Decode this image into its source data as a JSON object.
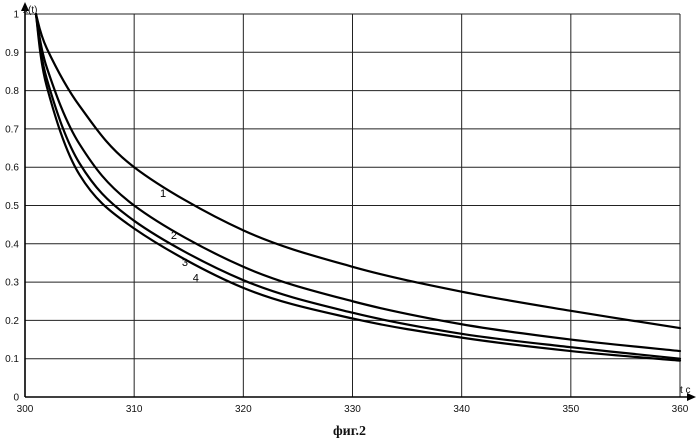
{
  "chart_data": {
    "type": "line",
    "ylabel": "x(t)",
    "xlabel": "t c",
    "xlim": [
      300,
      360
    ],
    "ylim": [
      0,
      1
    ],
    "x_ticks": [
      300,
      310,
      320,
      330,
      340,
      350,
      360
    ],
    "y_ticks": [
      0,
      0.1,
      0.2,
      0.3,
      0.4,
      0.5,
      0.6,
      0.7,
      0.8,
      0.9,
      1
    ],
    "grid": true,
    "series": [
      {
        "name": "1",
        "x": [
          301,
          302,
          305,
          310,
          320,
          330,
          340,
          350,
          360
        ],
        "y": [
          1.0,
          0.91,
          0.76,
          0.6,
          0.435,
          0.34,
          0.275,
          0.225,
          0.18
        ]
      },
      {
        "name": "2",
        "x": [
          301,
          302,
          305,
          310,
          320,
          330,
          340,
          350,
          360
        ],
        "y": [
          1.0,
          0.86,
          0.66,
          0.5,
          0.34,
          0.25,
          0.19,
          0.15,
          0.12
        ]
      },
      {
        "name": "3",
        "x": [
          301,
          302,
          305,
          310,
          320,
          330,
          340,
          350,
          360
        ],
        "y": [
          1.0,
          0.83,
          0.61,
          0.46,
          0.305,
          0.22,
          0.165,
          0.13,
          0.1
        ]
      },
      {
        "name": "4",
        "x": [
          301,
          302,
          305,
          310,
          320,
          330,
          340,
          350,
          360
        ],
        "y": [
          1.0,
          0.81,
          0.58,
          0.44,
          0.285,
          0.205,
          0.155,
          0.12,
          0.095
        ]
      }
    ],
    "series_labels": [
      {
        "text": "1",
        "x": 312,
        "y": 0.53
      },
      {
        "text": "2",
        "x": 313,
        "y": 0.42
      },
      {
        "text": "3",
        "x": 314,
        "y": 0.35
      },
      {
        "text": "4",
        "x": 315,
        "y": 0.31
      }
    ]
  },
  "caption": "фиг.2"
}
